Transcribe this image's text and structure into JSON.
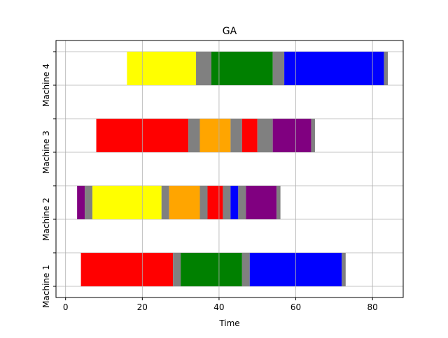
{
  "chart_data": {
    "type": "gantt",
    "title": "GA",
    "xlabel": "Time",
    "ylabel": "",
    "xlim": [
      -2.5,
      88
    ],
    "xticks": [
      0,
      20,
      40,
      60,
      80
    ],
    "grid": true,
    "rows": [
      {
        "label": "Machine 1",
        "tasks": [
          {
            "start": 4,
            "end": 28,
            "color": "#ff0000"
          },
          {
            "start": 28,
            "end": 30,
            "color": "#808080"
          },
          {
            "start": 30,
            "end": 46,
            "color": "#008000"
          },
          {
            "start": 46,
            "end": 48,
            "color": "#808080"
          },
          {
            "start": 48,
            "end": 72,
            "color": "#0000ff"
          },
          {
            "start": 72,
            "end": 73,
            "color": "#808080"
          }
        ]
      },
      {
        "label": "Machine 2",
        "tasks": [
          {
            "start": 3,
            "end": 5,
            "color": "#800080"
          },
          {
            "start": 5,
            "end": 7,
            "color": "#808080"
          },
          {
            "start": 7,
            "end": 25,
            "color": "#ffff00"
          },
          {
            "start": 25,
            "end": 27,
            "color": "#808080"
          },
          {
            "start": 27,
            "end": 35,
            "color": "#ffa500"
          },
          {
            "start": 35,
            "end": 37,
            "color": "#808080"
          },
          {
            "start": 37,
            "end": 41,
            "color": "#ff0000"
          },
          {
            "start": 41,
            "end": 43,
            "color": "#808080"
          },
          {
            "start": 43,
            "end": 45,
            "color": "#0000ff"
          },
          {
            "start": 45,
            "end": 47,
            "color": "#808080"
          },
          {
            "start": 47,
            "end": 55,
            "color": "#800080"
          },
          {
            "start": 55,
            "end": 56,
            "color": "#808080"
          }
        ]
      },
      {
        "label": "Machine 3",
        "tasks": [
          {
            "start": 8,
            "end": 32,
            "color": "#ff0000"
          },
          {
            "start": 32,
            "end": 35,
            "color": "#808080"
          },
          {
            "start": 35,
            "end": 43,
            "color": "#ffa500"
          },
          {
            "start": 43,
            "end": 46,
            "color": "#808080"
          },
          {
            "start": 46,
            "end": 50,
            "color": "#ff0000"
          },
          {
            "start": 50,
            "end": 54,
            "color": "#808080"
          },
          {
            "start": 54,
            "end": 64,
            "color": "#800080"
          },
          {
            "start": 64,
            "end": 65,
            "color": "#808080"
          }
        ]
      },
      {
        "label": "Machine 4",
        "tasks": [
          {
            "start": 16,
            "end": 34,
            "color": "#ffff00"
          },
          {
            "start": 34,
            "end": 38,
            "color": "#808080"
          },
          {
            "start": 38,
            "end": 54,
            "color": "#008000"
          },
          {
            "start": 54,
            "end": 57,
            "color": "#808080"
          },
          {
            "start": 57,
            "end": 83,
            "color": "#0000ff"
          },
          {
            "start": 83,
            "end": 84,
            "color": "#808080"
          }
        ]
      }
    ]
  }
}
